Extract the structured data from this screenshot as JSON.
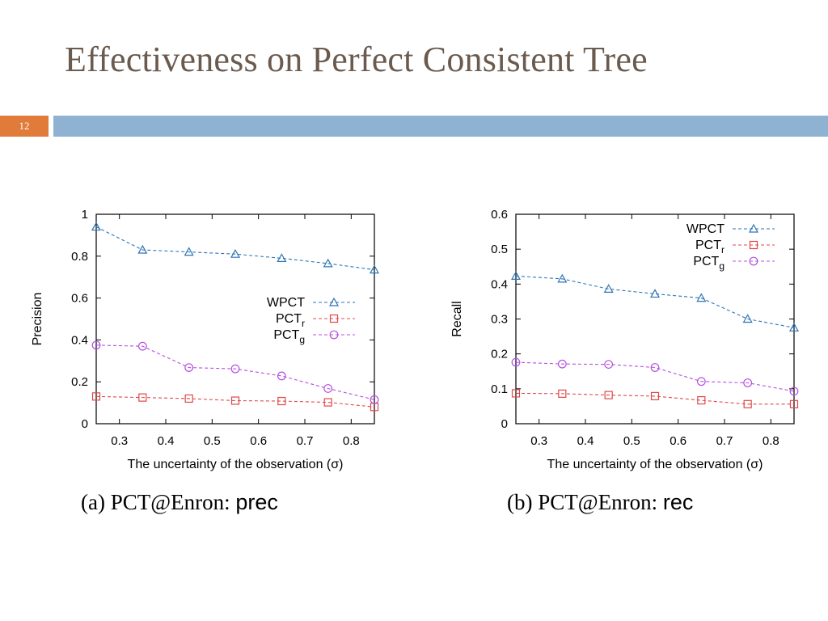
{
  "slide": {
    "title": "Effectiveness on Perfect Consistent Tree",
    "number": "12",
    "colors": {
      "title": "#6b5a4e",
      "number_box": "#e07b39",
      "bar": "#8fb2d3"
    }
  },
  "chart_data": [
    {
      "type": "line",
      "caption_prefix": "(a) PCT@Enron: ",
      "caption_suffix": "prec",
      "xlabel": "The uncertainty of the observation (σ)",
      "ylabel": "Precision",
      "xlim": [
        0.25,
        0.85
      ],
      "ylim": [
        0,
        1
      ],
      "xticks": [
        0.3,
        0.4,
        0.5,
        0.6,
        0.7,
        0.8
      ],
      "yticks": [
        0,
        0.2,
        0.4,
        0.6,
        0.8,
        1
      ],
      "ytick_labels": [
        "0",
        "0.2",
        "0.4",
        "0.6",
        "0.8",
        "1"
      ],
      "grid": false,
      "legend_position": "center-right",
      "x": [
        0.25,
        0.35,
        0.45,
        0.55,
        0.65,
        0.75,
        0.85
      ],
      "series": [
        {
          "name": "WPCT",
          "sub": "",
          "marker": "triangle",
          "color": "#2e75b6",
          "values": [
            0.94,
            0.83,
            0.82,
            0.81,
            0.79,
            0.765,
            0.735
          ]
        },
        {
          "name": "PCT",
          "sub": "r",
          "marker": "square",
          "color": "#e04848",
          "values": [
            0.13,
            0.125,
            0.12,
            0.11,
            0.108,
            0.102,
            0.08
          ]
        },
        {
          "name": "PCT",
          "sub": "g",
          "marker": "circle",
          "color": "#b44fe0",
          "values": [
            0.375,
            0.37,
            0.268,
            0.262,
            0.228,
            0.168,
            0.115
          ]
        }
      ]
    },
    {
      "type": "line",
      "caption_prefix": "(b) PCT@Enron: ",
      "caption_suffix": "rec",
      "xlabel": "The uncertainty of the observation (σ)",
      "ylabel": "Recall",
      "xlim": [
        0.25,
        0.85
      ],
      "ylim": [
        0,
        0.6
      ],
      "xticks": [
        0.3,
        0.4,
        0.5,
        0.6,
        0.7,
        0.8
      ],
      "yticks": [
        0,
        0.1,
        0.2,
        0.3,
        0.4,
        0.5,
        0.6
      ],
      "ytick_labels": [
        "0",
        "0.1",
        "0.2",
        "0.3",
        "0.4",
        "0.5",
        "0.6"
      ],
      "grid": false,
      "legend_position": "top-right",
      "x": [
        0.25,
        0.35,
        0.45,
        0.55,
        0.65,
        0.75,
        0.85
      ],
      "series": [
        {
          "name": "WPCT",
          "sub": "",
          "marker": "triangle",
          "color": "#2e75b6",
          "values": [
            0.423,
            0.415,
            0.386,
            0.372,
            0.36,
            0.3,
            0.275
          ]
        },
        {
          "name": "PCT",
          "sub": "r",
          "marker": "square",
          "color": "#e04848",
          "values": [
            0.087,
            0.086,
            0.082,
            0.079,
            0.067,
            0.056,
            0.056
          ]
        },
        {
          "name": "PCT",
          "sub": "g",
          "marker": "circle",
          "color": "#b44fe0",
          "values": [
            0.176,
            0.171,
            0.17,
            0.161,
            0.121,
            0.117,
            0.093
          ]
        }
      ]
    }
  ]
}
